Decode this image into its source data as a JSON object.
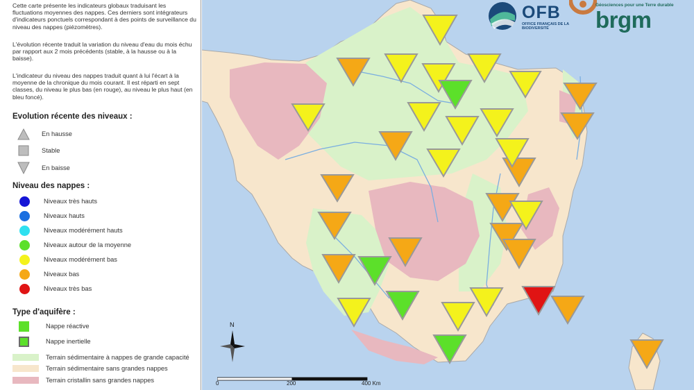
{
  "legend": {
    "intro": [
      "Cette carte présente les indicateurs globaux traduisant les fluctuations moyennes des nappes. Ces derniers sont intégrateurs d'indicateurs ponctuels correspondant à des points de surveillance du niveau des nappes (piézomètres).",
      "L'évolution récente traduit la variation du niveau d'eau du mois échu par rapport aux 2 mois précédents (stable, à la hausse ou à la baisse).",
      "L'indicateur du niveau des nappes traduit quant à lui l'écart à la moyenne de la chronique du mois courant. Il est réparti en sept classes, du niveau le plus bas (en rouge), au niveau le plus haut (en bleu foncé)."
    ],
    "evolution_title": "Evolution récente des niveaux :",
    "evolution": [
      {
        "label": "En hausse",
        "icon": "triangle-up-icon"
      },
      {
        "label": "Stable",
        "icon": "square-icon"
      },
      {
        "label": "En baisse",
        "icon": "triangle-down-icon"
      }
    ],
    "niveau_title": "Niveau des nappes :",
    "niveaux": [
      {
        "label": "Niveaux très hauts",
        "color": "#1515d6"
      },
      {
        "label": "Niveaux hauts",
        "color": "#1a6fe0"
      },
      {
        "label": "Niveaux modérément hauts",
        "color": "#2ee0f0"
      },
      {
        "label": "Niveaux autour de la moyenne",
        "color": "#5ce02a"
      },
      {
        "label": "Niveaux modérément bas",
        "color": "#f4f21c"
      },
      {
        "label": "Niveaux bas",
        "color": "#f5a816"
      },
      {
        "label": "Niveaux très bas",
        "color": "#e01414"
      }
    ],
    "aquifere_title": "Type d'aquifère :",
    "aquiferes": [
      {
        "label": "Nappe réactive",
        "border": "#5ce02a"
      },
      {
        "label": "Nappe inertielle",
        "border": "#6b6b6b"
      }
    ],
    "terrains": [
      {
        "label": "Terrain sédimentaire à nappes de grande capacité",
        "color": "#d9f2c9"
      },
      {
        "label": "Terrain sédimentaire sans grandes nappes",
        "color": "#f7e6cc"
      },
      {
        "label": "Terrain cristallin sans grandes nappes",
        "color": "#e8b8bf"
      }
    ]
  },
  "logos": {
    "ofb": "OFB",
    "ofb_sub": "OFFICE FRANÇAIS DE LA BIODIVERSITÉ",
    "brgm": "brgm",
    "brgm_tag": "Géosciences pour une Terre durable"
  },
  "map": {
    "north": "N",
    "scale_labels": [
      "0",
      "200",
      "400 Km"
    ],
    "colors": {
      "sea": "#b9d3ee",
      "sediment_big": "#d9f2c9",
      "sediment": "#f7e6cc",
      "crystalline": "#e8b8bf",
      "river": "#7aaee0"
    },
    "markers": [
      {
        "id": "m1",
        "level": "Niveaux modérément bas",
        "trend": "En baisse"
      },
      {
        "id": "m2",
        "level": "Niveaux bas",
        "trend": "En baisse"
      },
      {
        "id": "m3",
        "level": "Niveaux modérément bas",
        "trend": "En baisse"
      },
      {
        "id": "m4",
        "level": "Niveaux modérément bas",
        "trend": "En baisse"
      },
      {
        "id": "m5",
        "level": "Niveaux modérément bas",
        "trend": "En baisse"
      },
      {
        "id": "m6",
        "level": "Niveaux autour de la moyenne",
        "trend": "En baisse"
      },
      {
        "id": "m7",
        "level": "Niveaux modérément bas",
        "trend": "En baisse"
      },
      {
        "id": "m8",
        "level": "Niveaux bas",
        "trend": "En baisse"
      },
      {
        "id": "m9",
        "level": "Niveaux modérément bas",
        "trend": "En baisse"
      },
      {
        "id": "m10",
        "level": "Niveaux modérément bas",
        "trend": "En baisse"
      },
      {
        "id": "m11",
        "level": "Niveaux modérément bas",
        "trend": "En baisse"
      },
      {
        "id": "m12",
        "level": "Niveaux bas",
        "trend": "En baisse"
      },
      {
        "id": "m13",
        "level": "Niveaux bas",
        "trend": "En baisse"
      },
      {
        "id": "m14",
        "level": "Niveaux bas",
        "trend": "En baisse"
      },
      {
        "id": "m15",
        "level": "Niveaux modérément bas",
        "trend": "En baisse"
      },
      {
        "id": "m16",
        "level": "Niveaux modérément bas",
        "trend": "En baisse"
      },
      {
        "id": "m17",
        "level": "Niveaux bas",
        "trend": "En baisse"
      },
      {
        "id": "m18",
        "level": "Niveaux bas",
        "trend": "En baisse"
      },
      {
        "id": "m19",
        "level": "Niveaux modérément bas",
        "trend": "En baisse"
      },
      {
        "id": "m20",
        "level": "Niveaux bas",
        "trend": "En baisse"
      },
      {
        "id": "m21",
        "level": "Niveaux modérément bas",
        "trend": "En baisse"
      },
      {
        "id": "m22",
        "level": "Niveaux bas",
        "trend": "En baisse"
      },
      {
        "id": "m23",
        "level": "Niveaux bas",
        "trend": "En baisse"
      },
      {
        "id": "m24",
        "level": "Niveaux bas",
        "trend": "En baisse"
      },
      {
        "id": "m25",
        "level": "Niveaux bas",
        "trend": "En baisse"
      },
      {
        "id": "m26",
        "level": "Niveaux autour de la moyenne",
        "trend": "En baisse"
      },
      {
        "id": "m27",
        "level": "Niveaux autour de la moyenne",
        "trend": "En baisse"
      },
      {
        "id": "m28",
        "level": "Niveaux modérément bas",
        "trend": "En baisse"
      },
      {
        "id": "m29",
        "level": "Niveaux modérément bas",
        "trend": "En baisse"
      },
      {
        "id": "m30",
        "level": "Niveaux modérément bas",
        "trend": "En baisse"
      },
      {
        "id": "m31",
        "level": "Niveaux très bas",
        "trend": "En baisse"
      },
      {
        "id": "m32",
        "level": "Niveaux bas",
        "trend": "En baisse"
      },
      {
        "id": "m33",
        "level": "Niveaux autour de la moyenne",
        "trend": "En baisse"
      },
      {
        "id": "m34",
        "level": "Niveaux bas",
        "trend": "En baisse"
      }
    ]
  }
}
